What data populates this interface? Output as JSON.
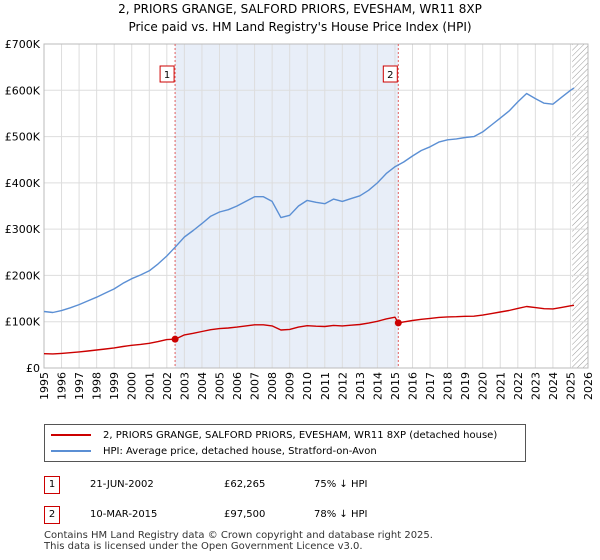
{
  "title_line1": "2, PRIORS GRANGE, SALFORD PRIORS, EVESHAM, WR11 8XP",
  "title_line2": "Price paid vs. HM Land Registry's House Price Index (HPI)",
  "colors": {
    "property": "#cc0000",
    "hpi": "#5b8fd4",
    "shade": "#e8eef8",
    "vline": "#e06060"
  },
  "chart_data": {
    "type": "line",
    "title": "2, PRIORS GRANGE, SALFORD PRIORS, EVESHAM, WR11 8XP — Price paid vs. HM Land Registry's House Price Index (HPI)",
    "xlim": [
      1995,
      2026
    ],
    "ylim": [
      0,
      700000
    ],
    "x_ticks": [
      "1995",
      "1996",
      "1997",
      "1998",
      "1999",
      "2000",
      "2001",
      "2002",
      "2003",
      "2004",
      "2005",
      "2006",
      "2007",
      "2008",
      "2009",
      "2010",
      "2011",
      "2012",
      "2013",
      "2014",
      "2015",
      "2016",
      "2017",
      "2018",
      "2019",
      "2020",
      "2021",
      "2022",
      "2023",
      "2024",
      "2025",
      "2026"
    ],
    "y_ticks": [
      {
        "value": 0,
        "label": "£0"
      },
      {
        "value": 100000,
        "label": "£100K"
      },
      {
        "value": 200000,
        "label": "£200K"
      },
      {
        "value": 300000,
        "label": "£300K"
      },
      {
        "value": 400000,
        "label": "£400K"
      },
      {
        "value": 500000,
        "label": "£500K"
      },
      {
        "value": 600000,
        "label": "£600K"
      },
      {
        "value": 700000,
        "label": "£700K"
      }
    ],
    "shaded_range": [
      2002.47,
      2015.19
    ],
    "future_hatch_from": 2025.1,
    "series": [
      {
        "name": "HPI: Average price, detached house, Stratford-on-Avon",
        "x": [
          1995,
          1995.5,
          1996,
          1996.5,
          1997,
          1997.5,
          1998,
          1998.5,
          1999,
          1999.5,
          2000,
          2000.5,
          2001,
          2001.5,
          2002,
          2002.5,
          2003,
          2003.5,
          2004,
          2004.5,
          2005,
          2005.5,
          2006,
          2006.5,
          2007,
          2007.5,
          2008,
          2008.5,
          2009,
          2009.5,
          2010,
          2010.5,
          2011,
          2011.5,
          2012,
          2012.5,
          2013,
          2013.5,
          2014,
          2014.5,
          2015,
          2015.5,
          2016,
          2016.5,
          2017,
          2017.5,
          2018,
          2018.5,
          2019,
          2019.5,
          2020,
          2020.5,
          2021,
          2021.5,
          2022,
          2022.5,
          2023,
          2023.5,
          2024,
          2024.5,
          2025,
          2025.2
        ],
        "values": [
          122000,
          120000,
          124000,
          130000,
          137000,
          145000,
          153000,
          162000,
          171000,
          183000,
          193000,
          201000,
          210000,
          225000,
          242000,
          262000,
          283000,
          297000,
          312000,
          328000,
          337000,
          342000,
          350000,
          360000,
          370000,
          370000,
          360000,
          325000,
          330000,
          350000,
          362000,
          358000,
          355000,
          365000,
          360000,
          366000,
          372000,
          384000,
          400000,
          420000,
          435000,
          445000,
          458000,
          470000,
          478000,
          488000,
          493000,
          495000,
          498000,
          500000,
          510000,
          525000,
          540000,
          555000,
          575000,
          593000,
          582000,
          572000,
          570000,
          585000,
          600000,
          605000
        ]
      },
      {
        "name": "2, PRIORS GRANGE, SALFORD PRIORS, EVESHAM, WR11 8XP (detached house)",
        "x": [
          1995,
          1995.5,
          1996,
          1996.5,
          1997,
          1997.5,
          1998,
          1998.5,
          1999,
          1999.5,
          2000,
          2000.5,
          2001,
          2001.5,
          2002,
          2002.47,
          2003,
          2003.5,
          2004,
          2004.5,
          2005,
          2005.5,
          2006,
          2006.5,
          2007,
          2007.5,
          2008,
          2008.5,
          2009,
          2009.5,
          2010,
          2010.5,
          2011,
          2011.5,
          2012,
          2012.5,
          2013,
          2013.5,
          2014,
          2014.5,
          2015,
          2015.19,
          2015.5,
          2016,
          2016.5,
          2017,
          2017.5,
          2018,
          2018.5,
          2019,
          2019.5,
          2020,
          2020.5,
          2021,
          2021.5,
          2022,
          2022.5,
          2023,
          2023.5,
          2024,
          2024.5,
          2025,
          2025.2
        ],
        "values": [
          31000,
          30500,
          31500,
          33000,
          34800,
          36800,
          38800,
          41000,
          43400,
          46400,
          49000,
          51000,
          53300,
          57100,
          61400,
          62265,
          71600,
          74900,
          78800,
          82800,
          85100,
          86400,
          88400,
          90900,
          93400,
          93400,
          90900,
          82000,
          83300,
          88400,
          91400,
          90400,
          89600,
          92100,
          90900,
          92400,
          93900,
          97000,
          101000,
          106000,
          109800,
          97500,
          99700,
          102600,
          105300,
          107100,
          109300,
          110400,
          110900,
          111600,
          112000,
          114300,
          117600,
          121000,
          124300,
          128800,
          132800,
          130400,
          128100,
          127700,
          131000,
          134400,
          135500
        ]
      }
    ],
    "sales": [
      {
        "marker": "1",
        "x": 2002.47,
        "date": "21-JUN-2002",
        "price": 62265,
        "price_label": "£62,265",
        "hpi": "75% ↓ HPI"
      },
      {
        "marker": "2",
        "x": 2015.19,
        "date": "10-MAR-2015",
        "price": 97500,
        "price_label": "£97,500",
        "hpi": "78% ↓ HPI"
      }
    ]
  },
  "legend": {
    "property": "2, PRIORS GRANGE, SALFORD PRIORS, EVESHAM, WR11 8XP (detached house)",
    "hpi": "HPI: Average price, detached house, Stratford-on-Avon"
  },
  "footer": {
    "line1": "Contains HM Land Registry data © Crown copyright and database right 2025.",
    "line2": "This data is licensed under the Open Government Licence v3.0."
  }
}
